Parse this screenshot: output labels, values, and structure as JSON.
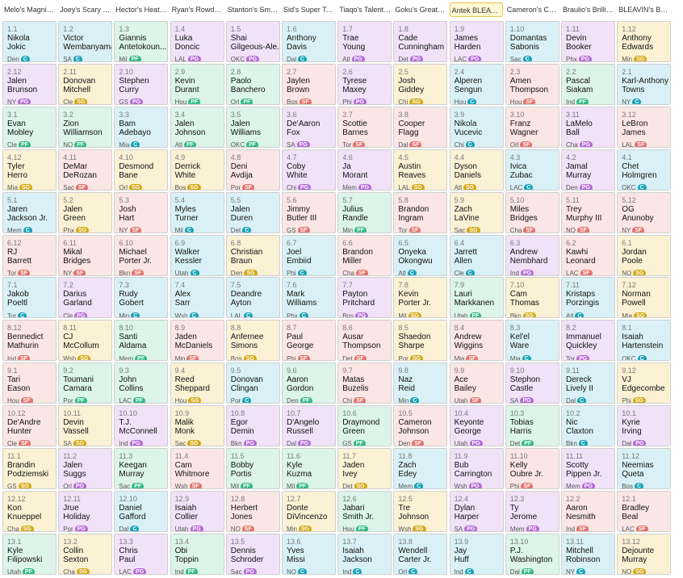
{
  "teams": [
    "Melo's Magnifi...",
    "Joey's Scary Te...",
    "Hector's Heate...",
    "Ryan's Rowdy T...",
    "Stanton's Smar...",
    "Sid's Super Team",
    "Tiaqo's Talente...",
    "Goku's Great T...",
    "Antek BLEAV I...",
    "Cameron's Co...",
    "Braulio's Brillia...",
    "BLEAVIN's Best ..."
  ],
  "active_team_index": 8,
  "rounds": [
    [
      [
        "1.1",
        "Nikola",
        "Jokic",
        "Den",
        "C"
      ],
      [
        "1.2",
        "Victor",
        "Wembanyama",
        "SA",
        "C"
      ],
      [
        "1.3",
        "Giannis",
        "Antetokoun...",
        "Mil",
        "PF"
      ],
      [
        "1.4",
        "Luka",
        "Doncic",
        "LAL",
        "PG"
      ],
      [
        "1.5",
        "Shai",
        "Gilgeous-Ale...",
        "OKC",
        "PG"
      ],
      [
        "1.6",
        "Anthony",
        "Davis",
        "Dal",
        "C"
      ],
      [
        "1.7",
        "Trae",
        "Young",
        "Atl",
        "PG"
      ],
      [
        "1.8",
        "Cade",
        "Cunningham",
        "Det",
        "PG"
      ],
      [
        "1.9",
        "James",
        "Harden",
        "LAC",
        "PG"
      ],
      [
        "1.10",
        "Domantas",
        "Sabonis",
        "Sac",
        "C"
      ],
      [
        "1.11",
        "Devin",
        "Booker",
        "Phx",
        "PG"
      ],
      [
        "1.12",
        "Anthony",
        "Edwards",
        "Min",
        "SG"
      ]
    ],
    [
      [
        "2.12",
        "Jalen",
        "Brunson",
        "NY",
        "PG"
      ],
      [
        "2.11",
        "Donovan",
        "Mitchell",
        "Cle",
        "SG"
      ],
      [
        "2.10",
        "Stephen",
        "Curry",
        "GS",
        "PG"
      ],
      [
        "2.9",
        "Kevin",
        "Durant",
        "Hou",
        "PF"
      ],
      [
        "2.8",
        "Paolo",
        "Banchero",
        "Orl",
        "PF"
      ],
      [
        "2.7",
        "Jaylen",
        "Brown",
        "Bos",
        "SF"
      ],
      [
        "2.6",
        "Tyrese",
        "Maxey",
        "Phi",
        "PG"
      ],
      [
        "2.5",
        "Josh",
        "Giddey",
        "Chi",
        "SG"
      ],
      [
        "2.4",
        "Alperen",
        "Sengun",
        "Hou",
        "C"
      ],
      [
        "2.3",
        "Amen",
        "Thompson",
        "Hou",
        "SF"
      ],
      [
        "2.2",
        "Pascal",
        "Siakam",
        "Ind",
        "PF"
      ],
      [
        "2.1",
        "Karl-Anthony",
        "Towns",
        "NY",
        "C"
      ]
    ],
    [
      [
        "3.1",
        "Evan",
        "Mobley",
        "Cle",
        "PF"
      ],
      [
        "3.2",
        "Zion",
        "Williamson",
        "NO",
        "PF"
      ],
      [
        "3.3",
        "Bam",
        "Adebayo",
        "Mia",
        "C"
      ],
      [
        "3.4",
        "Jalen",
        "Johnson",
        "Atl",
        "PF"
      ],
      [
        "3.5",
        "Jalen",
        "Williams",
        "OKC",
        "PF"
      ],
      [
        "3.6",
        "De'Aaron",
        "Fox",
        "SA",
        "PG"
      ],
      [
        "3.7",
        "Scottie",
        "Barnes",
        "Tor",
        "SF"
      ],
      [
        "3.8",
        "Cooper",
        "Flagg",
        "Dal",
        "SF"
      ],
      [
        "3.9",
        "Nikola",
        "Vucevic",
        "Chi",
        "C"
      ],
      [
        "3.10",
        "Franz",
        "Wagner",
        "Orl",
        "SF"
      ],
      [
        "3.11",
        "LaMelo",
        "Ball",
        "Cha",
        "PG"
      ],
      [
        "3.12",
        "LeBron",
        "James",
        "LAL",
        "SF"
      ]
    ],
    [
      [
        "4.12",
        "Tyler",
        "Herro",
        "Mia",
        "SG"
      ],
      [
        "4.11",
        "DeMar",
        "DeRozan",
        "Sac",
        "SF"
      ],
      [
        "4.10",
        "Desmond",
        "Bane",
        "Orl",
        "SG"
      ],
      [
        "4.9",
        "Derrick",
        "White",
        "Bos",
        "SG"
      ],
      [
        "4.8",
        "Deni",
        "Avdija",
        "Por",
        "SF"
      ],
      [
        "4.7",
        "Coby",
        "White",
        "Chi",
        "PG"
      ],
      [
        "4.6",
        "Ja",
        "Morant",
        "Mem",
        "PG"
      ],
      [
        "4.5",
        "Austin",
        "Reaves",
        "LAL",
        "SG"
      ],
      [
        "4.4",
        "Dyson",
        "Daniels",
        "Atl",
        "SG"
      ],
      [
        "4.3",
        "Ivica",
        "Zubac",
        "LAC",
        "C"
      ],
      [
        "4.2",
        "Jamal",
        "Murray",
        "Den",
        "PG"
      ],
      [
        "4.1",
        "Chet",
        "Holmgren",
        "OKC",
        "C"
      ]
    ],
    [
      [
        "5.1",
        "Jaren",
        "Jackson Jr.",
        "Mem",
        "C"
      ],
      [
        "5.2",
        "Jalen",
        "Green",
        "Phx",
        "SG"
      ],
      [
        "5.3",
        "Josh",
        "Hart",
        "NY",
        "SF"
      ],
      [
        "5.4",
        "Myles",
        "Turner",
        "Mil",
        "C"
      ],
      [
        "5.5",
        "Jalen",
        "Duren",
        "Det",
        "C"
      ],
      [
        "5.6",
        "Jimmy",
        "Butler III",
        "GS",
        "SF"
      ],
      [
        "5.7",
        "Julius",
        "Randle",
        "Min",
        "PF"
      ],
      [
        "5.8",
        "Brandon",
        "Ingram",
        "Tor",
        "SF"
      ],
      [
        "5.9",
        "Zach",
        "LaVine",
        "Sac",
        "SG"
      ],
      [
        "5.10",
        "Miles",
        "Bridges",
        "Cha",
        "SF"
      ],
      [
        "5.11",
        "Trey",
        "Murphy III",
        "NO",
        "SF"
      ],
      [
        "5.12",
        "OG",
        "Anunoby",
        "NY",
        "SF"
      ]
    ],
    [
      [
        "6.12",
        "RJ",
        "Barrett",
        "Tor",
        "SF"
      ],
      [
        "6.11",
        "Mikal",
        "Bridges",
        "NY",
        "SF"
      ],
      [
        "6.10",
        "Michael",
        "Porter Jr.",
        "Bkn",
        "SF"
      ],
      [
        "6.9",
        "Walker",
        "Kessler",
        "Utah",
        "C"
      ],
      [
        "6.8",
        "Christian",
        "Braun",
        "Den",
        "SG"
      ],
      [
        "6.7",
        "Joel",
        "Embiid",
        "Phi",
        "C"
      ],
      [
        "6.6",
        "Brandon",
        "Miller",
        "Cha",
        "SF"
      ],
      [
        "6.5",
        "Onyeka",
        "Okongwu",
        "Atl",
        "C"
      ],
      [
        "6.4",
        "Jarrett",
        "Allen",
        "Cle",
        "C"
      ],
      [
        "6.3",
        "Andrew",
        "Nembhard",
        "Ind",
        "PG"
      ],
      [
        "6.2",
        "Kawhi",
        "Leonard",
        "LAC",
        "SF"
      ],
      [
        "6.1",
        "Jordan",
        "Poole",
        "NO",
        "SG"
      ]
    ],
    [
      [
        "7.1",
        "Jakob",
        "Poeltl",
        "Tor",
        "C"
      ],
      [
        "7.2",
        "Darius",
        "Garland",
        "Cle",
        "PG"
      ],
      [
        "7.3",
        "Rudy",
        "Gobert",
        "Min",
        "C"
      ],
      [
        "7.4",
        "Alex",
        "Sarr",
        "Wsh",
        "C"
      ],
      [
        "7.5",
        "Deandre",
        "Ayton",
        "LAL",
        "C"
      ],
      [
        "7.6",
        "Mark",
        "Williams",
        "Phx",
        "C"
      ],
      [
        "7.7",
        "Payton",
        "Pritchard",
        "Bos",
        "PG"
      ],
      [
        "7.8",
        "Kevin",
        "Porter Jr.",
        "Mil",
        "SG"
      ],
      [
        "7.9",
        "Lauri",
        "Markkanen",
        "Utah",
        "PF"
      ],
      [
        "7.10",
        "Cam",
        "Thomas",
        "Bkn",
        "SG"
      ],
      [
        "7.11",
        "Kristaps",
        "Porzingis",
        "Atl",
        "C"
      ],
      [
        "7.12",
        "Norman",
        "Powell",
        "Mia",
        "SG"
      ]
    ],
    [
      [
        "8.12",
        "Bennedict",
        "Mathurin",
        "Ind",
        "SF"
      ],
      [
        "8.11",
        "CJ",
        "McCollum",
        "Wsh",
        "SG"
      ],
      [
        "8.10",
        "Santi",
        "Aldama",
        "Mem",
        "PF"
      ],
      [
        "8.9",
        "Jaden",
        "McDaniels",
        "Min",
        "SF"
      ],
      [
        "8.8",
        "Anfernee",
        "Simons",
        "Bos",
        "SG"
      ],
      [
        "8.7",
        "Paul",
        "George",
        "Phi",
        "SF"
      ],
      [
        "8.6",
        "Ausar",
        "Thompson",
        "Det",
        "SF"
      ],
      [
        "8.5",
        "Shaedon",
        "Sharpe",
        "Por",
        "SG"
      ],
      [
        "8.4",
        "Andrew",
        "Wiggins",
        "Mia",
        "SF"
      ],
      [
        "8.3",
        "Kel'el",
        "Ware",
        "Mia",
        "C"
      ],
      [
        "8.2",
        "Immanuel",
        "Quickley",
        "Tor",
        "PG"
      ],
      [
        "8.1",
        "Isaiah",
        "Hartenstein",
        "OKC",
        "C"
      ]
    ],
    [
      [
        "9.1",
        "Tari",
        "Eason",
        "Hou",
        "SF"
      ],
      [
        "9.2",
        "Toumani",
        "Camara",
        "Por",
        "PF"
      ],
      [
        "9.3",
        "John",
        "Collins",
        "LAC",
        "PF"
      ],
      [
        "9.4",
        "Reed",
        "Sheppard",
        "Hou",
        "SG"
      ],
      [
        "9.5",
        "Donovan",
        "Clingan",
        "Por",
        "C"
      ],
      [
        "9.6",
        "Aaron",
        "Gordon",
        "Den",
        "PF"
      ],
      [
        "9.7",
        "Matas",
        "Buzelis",
        "Chi",
        "SF"
      ],
      [
        "9.8",
        "Naz",
        "Reid",
        "Min",
        "C"
      ],
      [
        "9.9",
        "Ace",
        "Bailey",
        "Utah",
        "SF"
      ],
      [
        "9.10",
        "Stephon",
        "Castle",
        "SA",
        "PG"
      ],
      [
        "9.11",
        "Dereck",
        "Lively II",
        "Dal",
        "C"
      ],
      [
        "9.12",
        "VJ",
        "Edgecombe",
        "Phi",
        "SG"
      ]
    ],
    [
      [
        "10.12",
        "De'Andre",
        "Hunter",
        "Cle",
        "SF"
      ],
      [
        "10.11",
        "Devin",
        "Vassell",
        "SA",
        "SG"
      ],
      [
        "10.10",
        "T.J.",
        "McConnell",
        "Ind",
        "PG"
      ],
      [
        "10.9",
        "Malik",
        "Monk",
        "Sac",
        "SG"
      ],
      [
        "10.8",
        "Egor",
        "Demin",
        "Bkn",
        "PG"
      ],
      [
        "10.7",
        "D'Angelo",
        "Russell",
        "Dal",
        "PG"
      ],
      [
        "10.6",
        "Draymond",
        "Green",
        "GS",
        "PF"
      ],
      [
        "10.5",
        "Cameron",
        "Johnson",
        "Den",
        "SF"
      ],
      [
        "10.4",
        "Keyonte",
        "George",
        "Utah",
        "PG"
      ],
      [
        "10.3",
        "Tobias",
        "Harris",
        "Det",
        "PF"
      ],
      [
        "10.2",
        "Nic",
        "Claxton",
        "Bkn",
        "C"
      ],
      [
        "10.1",
        "Kyrie",
        "Irving",
        "Dal",
        "PG"
      ]
    ],
    [
      [
        "11.1",
        "Brandin",
        "Podziemski",
        "GS",
        "SG"
      ],
      [
        "11.2",
        "Jalen",
        "Suggs",
        "Orl",
        "PG"
      ],
      [
        "11.3",
        "Keegan",
        "Murray",
        "Sac",
        "PF"
      ],
      [
        "11.4",
        "Cam",
        "Whitmore",
        "Wsh",
        "SF"
      ],
      [
        "11.5",
        "Bobby",
        "Portis",
        "Mil",
        "PF"
      ],
      [
        "11.6",
        "Kyle",
        "Kuzma",
        "Mil",
        "PF"
      ],
      [
        "11.7",
        "Jaden",
        "Ivey",
        "Det",
        "SG"
      ],
      [
        "11.8",
        "Zach",
        "Edey",
        "Mem",
        "C"
      ],
      [
        "11.9",
        "Bub",
        "Carrington",
        "Wsh",
        "PG"
      ],
      [
        "11.10",
        "Kelly",
        "Oubre Jr.",
        "Phi",
        "SF"
      ],
      [
        "11.11",
        "Scotty",
        "Pippen Jr.",
        "Mem",
        "PG"
      ],
      [
        "11.12",
        "Neemias",
        "Queta",
        "Bos",
        "C"
      ]
    ],
    [
      [
        "12.12",
        "Kon",
        "Knueppel",
        "Cha",
        "SG"
      ],
      [
        "12.11",
        "Jrue",
        "Holiday",
        "Por",
        "PG"
      ],
      [
        "12.10",
        "Daniel",
        "Gafford",
        "Dal",
        "C"
      ],
      [
        "12.9",
        "Isaiah",
        "Collier",
        "Utah",
        "PG"
      ],
      [
        "12.8",
        "Herbert",
        "Jones",
        "NO",
        "SF"
      ],
      [
        "12.7",
        "Donte",
        "DiVincenzo",
        "Min",
        "SG"
      ],
      [
        "12.6",
        "Jabari",
        "Smith Jr.",
        "Hou",
        "PF"
      ],
      [
        "12.5",
        "Tre",
        "Johnson",
        "Wsh",
        "SG"
      ],
      [
        "12.4",
        "Dylan",
        "Harper",
        "SA",
        "PG"
      ],
      [
        "12.3",
        "Ty",
        "Jerome",
        "Mem",
        "PG"
      ],
      [
        "12.2",
        "Aaron",
        "Nesmith",
        "Ind",
        "SF"
      ],
      [
        "12.1",
        "Bradley",
        "Beal",
        "LAC",
        "SF"
      ]
    ],
    [
      [
        "13.1",
        "Kyle",
        "Filipowski",
        "Utah",
        "PF"
      ],
      [
        "13.2",
        "Collin",
        "Sexton",
        "Cha",
        "SG"
      ],
      [
        "13.3",
        "Chris",
        "Paul",
        "LAC",
        "PG"
      ],
      [
        "13.4",
        "Obi",
        "Toppin",
        "Ind",
        "PF"
      ],
      [
        "13.5",
        "Dennis",
        "Schroder",
        "Sac",
        "PG"
      ],
      [
        "13.6",
        "Yves",
        "Missi",
        "NO",
        "C"
      ],
      [
        "13.7",
        "Isaiah",
        "Jackson",
        "Ind",
        "C"
      ],
      [
        "13.8",
        "Wendell",
        "Carter Jr.",
        "Orl",
        "C"
      ],
      [
        "13.9",
        "Jay",
        "Huff",
        "Ind",
        "C"
      ],
      [
        "13.10",
        "P.J.",
        "Washington",
        "Dal",
        "PF"
      ],
      [
        "13.11",
        "Mitchell",
        "Robinson",
        "NY",
        "C"
      ],
      [
        "13.12",
        "Dejounte",
        "Murray",
        "NO",
        "SG"
      ]
    ]
  ]
}
